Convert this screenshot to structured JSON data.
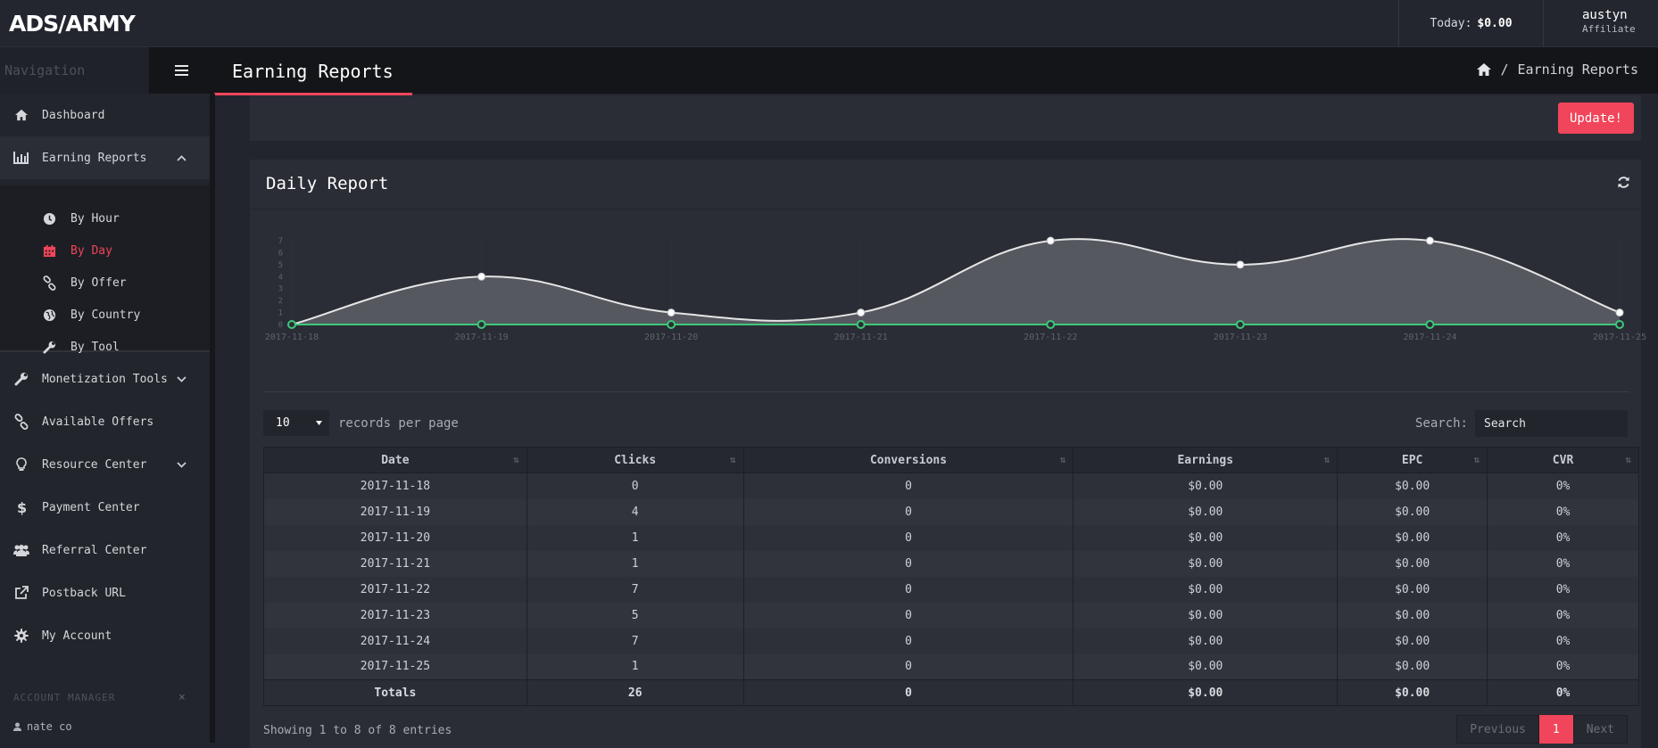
{
  "brand": {
    "logo_text": "ADS/ARMY"
  },
  "topbar": {
    "today_label": "Today:",
    "today_value": "$0.00",
    "user_name": "austyn",
    "user_role": "Affiliate"
  },
  "nav_header": {
    "label": "Navigation",
    "menu_icon": "hamburger-icon"
  },
  "page": {
    "title": "Earning Reports"
  },
  "breadcrumb": {
    "home_icon": "home-icon",
    "separator": "/",
    "current": "Earning Reports"
  },
  "sidebar": {
    "items": [
      {
        "label": "Dashboard",
        "icon": "home-icon"
      },
      {
        "label": "Earning Reports",
        "icon": "bar-chart-icon",
        "expanded": true
      },
      {
        "label": "Monetization Tools",
        "icon": "wrench-icon",
        "chevron": true
      },
      {
        "label": "Available Offers",
        "icon": "link-icon"
      },
      {
        "label": "Resource Center",
        "icon": "lightbulb-icon",
        "chevron": true
      },
      {
        "label": "Payment Center",
        "icon": "dollar-icon"
      },
      {
        "label": "Referral Center",
        "icon": "users-icon"
      },
      {
        "label": "Postback URL",
        "icon": "external-link-icon"
      },
      {
        "label": "My Account",
        "icon": "gear-icon"
      }
    ],
    "sub_items": [
      {
        "label": "By Hour",
        "icon": "clock-icon"
      },
      {
        "label": "By Day",
        "icon": "calendar-icon",
        "active": true
      },
      {
        "label": "By Offer",
        "icon": "link-icon"
      },
      {
        "label": "By Country",
        "icon": "globe-icon"
      },
      {
        "label": "By Tool",
        "icon": "wrench-icon"
      }
    ],
    "account_manager": {
      "label": "ACCOUNT MANAGER",
      "close": "×",
      "name": "nate co"
    }
  },
  "actions": {
    "update_label": "Update!"
  },
  "report": {
    "title": "Daily Report",
    "refresh_icon": "refresh-icon"
  },
  "chart_data": {
    "type": "area",
    "x": [
      "2017-11-18",
      "2017-11-19",
      "2017-11-20",
      "2017-11-21",
      "2017-11-22",
      "2017-11-23",
      "2017-11-24",
      "2017-11-25"
    ],
    "series": [
      {
        "values": [
          0,
          4,
          1,
          1,
          7,
          5,
          7,
          1
        ],
        "color": "#e6e6e6"
      },
      {
        "values": [
          0,
          0,
          0,
          0,
          0,
          0,
          0,
          0
        ],
        "color": "#3ec87a"
      }
    ],
    "y_ticks": [
      "0",
      "1",
      "2",
      "3",
      "4",
      "5",
      "6",
      "7"
    ],
    "ylim": [
      0,
      7
    ],
    "grid": true,
    "fill_color": "#595b63"
  },
  "table_controls": {
    "per_page_value": "10",
    "per_page_label": "records per page",
    "search_label": "Search:",
    "search_placeholder": "Search"
  },
  "table": {
    "columns": [
      "Date",
      "Clicks",
      "Conversions",
      "Earnings",
      "EPC",
      "CVR"
    ],
    "rows": [
      [
        "2017-11-18",
        "0",
        "0",
        "$0.00",
        "$0.00",
        "0%"
      ],
      [
        "2017-11-19",
        "4",
        "0",
        "$0.00",
        "$0.00",
        "0%"
      ],
      [
        "2017-11-20",
        "1",
        "0",
        "$0.00",
        "$0.00",
        "0%"
      ],
      [
        "2017-11-21",
        "1",
        "0",
        "$0.00",
        "$0.00",
        "0%"
      ],
      [
        "2017-11-22",
        "7",
        "0",
        "$0.00",
        "$0.00",
        "0%"
      ],
      [
        "2017-11-23",
        "5",
        "0",
        "$0.00",
        "$0.00",
        "0%"
      ],
      [
        "2017-11-24",
        "7",
        "0",
        "$0.00",
        "$0.00",
        "0%"
      ],
      [
        "2017-11-25",
        "1",
        "0",
        "$0.00",
        "$0.00",
        "0%"
      ]
    ],
    "totals": [
      "Totals",
      "26",
      "0",
      "$0.00",
      "$0.00",
      "0%"
    ]
  },
  "footer": {
    "showing": "Showing 1 to 8 of 8 entries",
    "prev": "Previous",
    "page": "1",
    "next": "Next"
  },
  "colors": {
    "accent": "#f0455a",
    "bg": "#22252d",
    "panel": "#2a2d35",
    "line": "#3ec87a"
  }
}
